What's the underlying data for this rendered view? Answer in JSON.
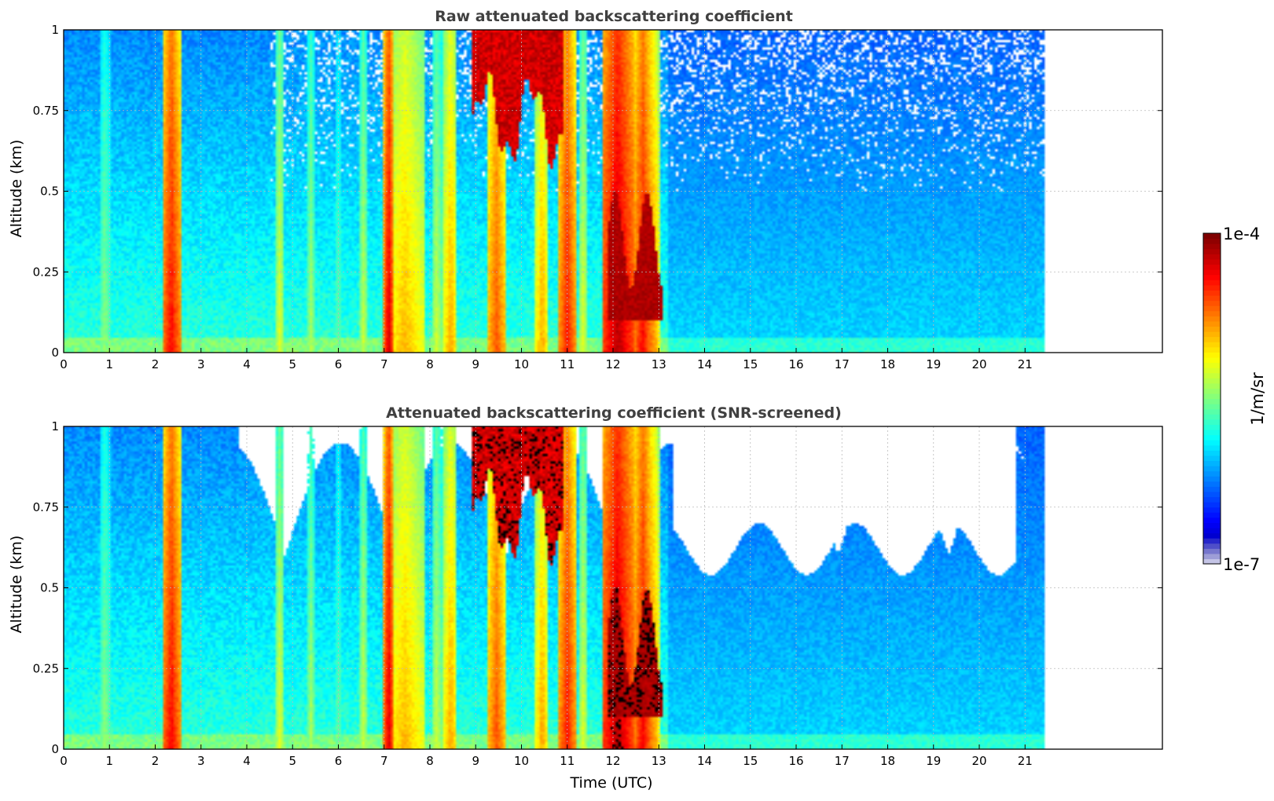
{
  "chart_data": [
    {
      "type": "heatmap",
      "title": "Raw attenuated backscattering coefficient",
      "xlabel": "",
      "ylabel": "Altitude (km)",
      "xlim": [
        0,
        24
      ],
      "ylim": [
        0,
        1
      ],
      "data_extent_x": [
        0,
        21.45
      ],
      "x_ticks": [
        0,
        1,
        2,
        3,
        4,
        5,
        6,
        7,
        8,
        9,
        10,
        11,
        12,
        13,
        14,
        15,
        16,
        17,
        18,
        19,
        20,
        21
      ],
      "x_tick_labels": [
        "0",
        "1",
        "2",
        "3",
        "4",
        "5",
        "6",
        "7",
        "8",
        "9",
        "10",
        "11",
        "12",
        "13",
        "14",
        "15",
        "16",
        "17",
        "18",
        "19",
        "20",
        "21"
      ],
      "y_ticks": [
        0,
        0.25,
        0.5,
        0.75,
        1
      ],
      "y_tick_labels": [
        "0",
        "0.25",
        "0.5",
        "0.75",
        "1"
      ],
      "grid": true,
      "colormap": "jet",
      "screened": false,
      "colorbar": {
        "min_label": "1e-7",
        "max_label": "1e-4",
        "label": "1/m/sr"
      },
      "features": {
        "background_level": 0.3,
        "stripes": [
          {
            "t": 0.9,
            "w": 0.12,
            "level": 0.52
          },
          {
            "t": 2.35,
            "w": 0.2,
            "level": 0.88
          },
          {
            "t": 4.72,
            "w": 0.1,
            "level": 0.6
          },
          {
            "t": 5.4,
            "w": 0.08,
            "level": 0.55
          },
          {
            "t": 6.0,
            "w": 0.06,
            "level": 0.5
          },
          {
            "t": 6.55,
            "w": 0.08,
            "level": 0.58
          },
          {
            "t": 7.1,
            "w": 0.1,
            "level": 0.92
          },
          {
            "t": 7.45,
            "w": 0.45,
            "level": 0.7
          },
          {
            "t": 8.15,
            "w": 0.12,
            "level": 0.58
          },
          {
            "t": 8.45,
            "w": 0.15,
            "level": 0.72
          },
          {
            "t": 9.45,
            "w": 0.2,
            "level": 0.8
          },
          {
            "t": 10.45,
            "w": 0.14,
            "level": 0.72
          },
          {
            "t": 11.0,
            "w": 0.18,
            "level": 0.86
          },
          {
            "t": 11.35,
            "w": 0.1,
            "level": 0.6
          },
          {
            "t": 12.1,
            "w": 0.35,
            "level": 0.95
          },
          {
            "t": 12.65,
            "w": 0.2,
            "level": 0.88
          },
          {
            "t": 12.9,
            "w": 0.1,
            "level": 0.75
          }
        ],
        "cloud": {
          "t_start": 8.9,
          "t_end": 10.9,
          "alt_min": 0.72,
          "level": 0.97
        }
      }
    },
    {
      "type": "heatmap",
      "title": "Attenuated backscattering coefficient (SNR-screened)",
      "xlabel": "Time (UTC)",
      "ylabel": "Altitude (km)",
      "xlim": [
        0,
        24
      ],
      "ylim": [
        0,
        1
      ],
      "data_extent_x": [
        0,
        21.45
      ],
      "x_ticks": [
        0,
        1,
        2,
        3,
        4,
        5,
        6,
        7,
        8,
        9,
        10,
        11,
        12,
        13,
        14,
        15,
        16,
        17,
        18,
        19,
        20,
        21
      ],
      "x_tick_labels": [
        "0",
        "1",
        "2",
        "3",
        "4",
        "5",
        "6",
        "7",
        "8",
        "9",
        "10",
        "11",
        "12",
        "13",
        "14",
        "15",
        "16",
        "17",
        "18",
        "19",
        "20",
        "21"
      ],
      "y_ticks": [
        0,
        0.25,
        0.5,
        0.75,
        1
      ],
      "y_tick_labels": [
        "0",
        "0.25",
        "0.5",
        "0.75",
        "1"
      ],
      "grid": true,
      "colormap": "jet",
      "screened": true,
      "colorbar": {
        "min_label": "1e-7",
        "max_label": "1e-4",
        "label": "1/m/sr"
      }
    }
  ],
  "colorbar": {
    "max_label": "1e-4",
    "min_label": "1e-7",
    "label": "1/m/sr"
  }
}
